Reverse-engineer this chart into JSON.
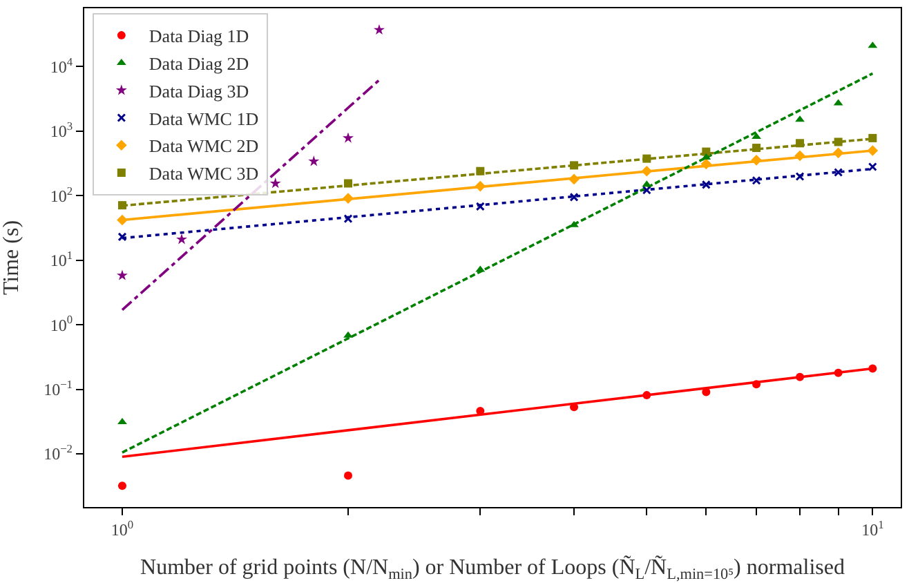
{
  "chart_data": {
    "type": "scatter",
    "xlabel": "Number of grid points (N/N$_{min}$) or Number of Loops (Ñ$_{L}$/Ñ$_{L,min=10⁵}$) normalised",
    "ylabel": "Time (s)",
    "log": "xy",
    "legend": "top left",
    "xlim": [
      0.89,
      10.9
    ],
    "ylim": [
      0.0015,
      80000
    ],
    "xticks": [
      {
        "value": 1,
        "label": "10$^{0}$"
      },
      {
        "value": 2,
        "label": null
      },
      {
        "value": 3,
        "label": null
      },
      {
        "value": 4,
        "label": null
      },
      {
        "value": 5,
        "label": null
      },
      {
        "value": 6,
        "label": null
      },
      {
        "value": 7,
        "label": null
      },
      {
        "value": 8,
        "label": null
      },
      {
        "value": 9,
        "label": null
      },
      {
        "value": 10,
        "label": "10$^{1}$"
      }
    ],
    "yticks": [
      {
        "value": 0.01,
        "label": "10$^{−2}$"
      },
      {
        "value": 0.1,
        "label": "10$^{−1}$"
      },
      {
        "value": 1,
        "label": "10$^{0}$"
      },
      {
        "value": 10,
        "label": "10$^{1}$"
      },
      {
        "value": 100,
        "label": "10$^{2}$"
      },
      {
        "value": 1000,
        "label": "10$^{3}$"
      },
      {
        "value": 10000,
        "label": "10$^{4}$"
      }
    ],
    "series": [
      {
        "name": "Data Diag 1D",
        "color": "#ff0000",
        "marker": "circle",
        "x": [
          1,
          2,
          3,
          4,
          5,
          6,
          7,
          8,
          9,
          10
        ],
        "values": [
          0.0032,
          0.0046,
          0.046,
          0.053,
          0.081,
          0.091,
          0.12,
          0.155,
          0.18,
          0.21
        ]
      },
      {
        "name": "Data Diag 2D",
        "color": "#008000",
        "marker": "triangle",
        "x": [
          1,
          2,
          3,
          4,
          5,
          6,
          7,
          8,
          9,
          10
        ],
        "values": [
          0.031,
          0.68,
          7.1,
          35,
          148,
          390,
          820,
          1500,
          2700,
          21000
        ]
      },
      {
        "name": "Data Diag 3D",
        "color": "#800080",
        "marker": "star",
        "x": [
          1,
          1.2,
          1.6,
          1.8,
          2,
          2.2
        ],
        "values": [
          5.8,
          21,
          155,
          340,
          780,
          37000
        ]
      },
      {
        "name": "Data WMC 1D",
        "color": "#00008b",
        "marker": "cross",
        "x": [
          1,
          2,
          3,
          4,
          5,
          6,
          7,
          8,
          9,
          10
        ],
        "values": [
          23,
          44,
          68,
          95,
          122,
          148,
          172,
          198,
          230,
          280
        ]
      },
      {
        "name": "Data WMC 2D",
        "color": "#ffa500",
        "marker": "diamond",
        "x": [
          1,
          2,
          3,
          4,
          5,
          6,
          7,
          8,
          9,
          10
        ],
        "values": [
          42,
          91,
          140,
          180,
          240,
          310,
          355,
          415,
          460,
          500
        ]
      },
      {
        "name": "Data WMC 3D",
        "color": "#808000",
        "marker": "square",
        "x": [
          1,
          2,
          3,
          4,
          5,
          6,
          7,
          8,
          9,
          10
        ],
        "values": [
          71,
          155,
          240,
          295,
          375,
          480,
          550,
          650,
          680,
          780
        ]
      },
      {
        "type": "line",
        "color": "#ff0000",
        "line_style": "solid",
        "x": [
          1,
          10
        ],
        "values": [
          0.009,
          0.21
        ]
      },
      {
        "type": "line",
        "color": "#008000",
        "line_style": "dashed",
        "x": [
          1,
          10
        ],
        "values": [
          0.0105,
          7800
        ]
      },
      {
        "type": "line",
        "color": "#800080",
        "line_style": "dashdot",
        "x": [
          1,
          2.2
        ],
        "values": [
          1.7,
          6200
        ]
      },
      {
        "type": "line",
        "color": "#00008b",
        "line_style": "dotted",
        "x": [
          1,
          10
        ],
        "values": [
          22,
          260
        ]
      },
      {
        "type": "line",
        "color": "#ffa500",
        "line_style": "solid",
        "x": [
          1,
          10
        ],
        "values": [
          42,
          500
        ]
      },
      {
        "type": "line",
        "color": "#808000",
        "line_style": "dashed",
        "x": [
          1,
          10
        ],
        "values": [
          70,
          760
        ]
      }
    ]
  }
}
